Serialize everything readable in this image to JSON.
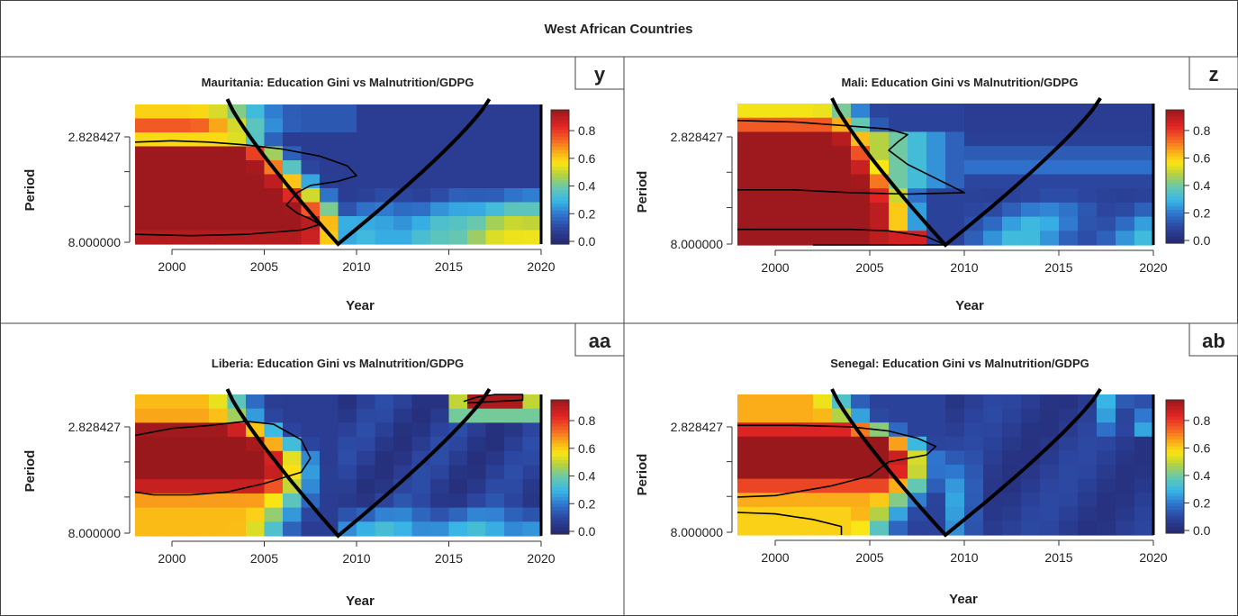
{
  "figure": {
    "title": "West African Countries"
  },
  "colorbar": {
    "ticks": [
      0.0,
      0.2,
      0.4,
      0.6,
      0.8
    ],
    "tick_labels": [
      "0.0",
      "0.2",
      "0.4",
      "0.6",
      "0.8"
    ],
    "range": [
      0,
      0.95
    ]
  },
  "chart_data": [
    {
      "type": "heatmap",
      "id": "y",
      "letter": "y",
      "title": "Mauritania: Education Gini vs Malnutrition/GDPG",
      "xlabel": "Year",
      "ylabel": "Period",
      "xlim": [
        1998,
        2020
      ],
      "x_ticks": [
        2000,
        2005,
        2010,
        2015,
        2020
      ],
      "y_tick_labels": [
        "2.828427",
        "8.000000"
      ],
      "params": {
        "kind": "mauritania",
        "hotEnd": 2009.5,
        "topHot": 2003.5,
        "bandTop": 0.3,
        "bandBot": 0.96,
        "pk": 2.828427
      },
      "contours": [
        [
          [
            1998,
            0.27
          ],
          [
            2000,
            0.26
          ],
          [
            2002,
            0.27
          ],
          [
            2004,
            0.29
          ],
          [
            2006,
            0.32
          ],
          [
            2008,
            0.37
          ],
          [
            2009.5,
            0.44
          ],
          [
            2010,
            0.51
          ],
          [
            2009,
            0.55
          ],
          [
            2007.5,
            0.58
          ],
          [
            2006.8,
            0.63
          ],
          [
            2006.2,
            0.72
          ],
          [
            2006.8,
            0.78
          ],
          [
            2007.5,
            0.82
          ],
          [
            2008,
            0.86
          ],
          [
            2007,
            0.9
          ],
          [
            2004,
            0.93
          ],
          [
            2001,
            0.94
          ],
          [
            1998,
            0.93
          ]
        ]
      ]
    },
    {
      "type": "heatmap",
      "id": "z",
      "letter": "z",
      "title": "Mali: Education Gini vs Malnutrition/GDPG",
      "xlabel": "Year",
      "ylabel": "Period",
      "xlim": [
        1998,
        2020
      ],
      "x_ticks": [
        2000,
        2005,
        2010,
        2015,
        2020
      ],
      "y_tick_labels": [
        "2.828427",
        "8.000000"
      ],
      "params": {
        "kind": "mali",
        "hotEnd": 2007.5,
        "topHot": 2004.5,
        "bandTop": 0.12,
        "bandBot": 1.0,
        "pk": 2.828427
      },
      "contours": [
        [
          [
            1998,
            0.12
          ],
          [
            2001,
            0.13
          ],
          [
            2004,
            0.16
          ],
          [
            2006,
            0.18
          ],
          [
            2007,
            0.22
          ],
          [
            2006.5,
            0.27
          ],
          [
            2006,
            0.33
          ],
          [
            2007,
            0.43
          ],
          [
            2008.5,
            0.53
          ],
          [
            2010,
            0.63
          ],
          [
            2007,
            0.64
          ],
          [
            2004,
            0.63
          ],
          [
            2001,
            0.61
          ],
          [
            1998,
            0.61
          ]
        ],
        [
          [
            1998,
            0.89
          ],
          [
            2001,
            0.89
          ],
          [
            2004,
            0.89
          ],
          [
            2006,
            0.9
          ],
          [
            2008,
            0.94
          ],
          [
            2009,
            1.0
          ],
          [
            2005,
            1.0
          ],
          [
            2002,
            1.0
          ]
        ]
      ]
    },
    {
      "type": "heatmap",
      "id": "aa",
      "letter": "aa",
      "title": "Liberia: Education Gini vs Malnutrition/GDPG",
      "xlabel": "Year",
      "ylabel": "Period",
      "xlim": [
        1998,
        2020
      ],
      "x_ticks": [
        2000,
        2005,
        2010,
        2015,
        2020
      ],
      "y_tick_labels": [
        "2.828427",
        "8.000000"
      ],
      "params": {
        "kind": "liberia",
        "hotEnd": 2007.5,
        "topHot": 2004.5,
        "bandTop": 0.16,
        "bandBot": 1.0,
        "pk": 2.828427
      },
      "contours": [
        [
          [
            1998,
            0.29
          ],
          [
            2000,
            0.24
          ],
          [
            2002,
            0.22
          ],
          [
            2004,
            0.19
          ],
          [
            2005.5,
            0.21
          ],
          [
            2007,
            0.32
          ],
          [
            2007.5,
            0.45
          ],
          [
            2007,
            0.55
          ],
          [
            2005,
            0.63
          ],
          [
            2003,
            0.69
          ],
          [
            2001,
            0.71
          ],
          [
            1999,
            0.71
          ],
          [
            1998,
            0.69
          ]
        ],
        [
          [
            2015.8,
            0.05
          ],
          [
            2016.5,
            0.02
          ],
          [
            2017.5,
            0.0
          ],
          [
            2019,
            0.0
          ],
          [
            2019,
            0.04
          ],
          [
            2017.5,
            0.05
          ],
          [
            2016,
            0.06
          ]
        ]
      ]
    },
    {
      "type": "heatmap",
      "id": "ab",
      "letter": "ab",
      "title": "Senegal: Education Gini vs Malnutrition/GDPG",
      "xlabel": "Year",
      "ylabel": "Period",
      "xlim": [
        1998,
        2020
      ],
      "x_ticks": [
        2000,
        2005,
        2010,
        2015,
        2020
      ],
      "y_tick_labels": [
        "2.828427",
        "8.000000"
      ],
      "params": {
        "kind": "senegal",
        "hotEnd": 2008,
        "topHot": 2004,
        "bandTop": 0.2,
        "bandBot": 1.0,
        "pk": 2.828427
      },
      "contours": [
        [
          [
            1998,
            0.22
          ],
          [
            2001,
            0.22
          ],
          [
            2004,
            0.23
          ],
          [
            2006,
            0.26
          ],
          [
            2007.5,
            0.31
          ],
          [
            2008.5,
            0.37
          ],
          [
            2008,
            0.43
          ],
          [
            2006,
            0.48
          ],
          [
            2005,
            0.58
          ],
          [
            2003,
            0.65
          ],
          [
            2000,
            0.72
          ],
          [
            1998,
            0.73
          ]
        ],
        [
          [
            1998,
            0.84
          ],
          [
            2000,
            0.85
          ],
          [
            2002,
            0.89
          ],
          [
            2003.5,
            0.94
          ],
          [
            2003.5,
            1.0
          ]
        ]
      ]
    }
  ]
}
